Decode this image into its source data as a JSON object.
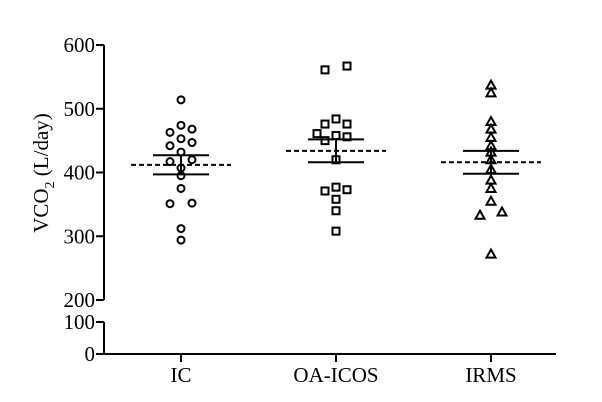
{
  "chart_data": {
    "type": "scatter",
    "ylabel": {
      "main": "VCO",
      "sub": "2",
      "rest": " (L/day)"
    },
    "upper_ticks": [
      "600",
      "500",
      "400",
      "300",
      "200"
    ],
    "lower_ticks": [
      "100",
      "0"
    ],
    "ylim_upper": [
      200,
      600
    ],
    "ylim_lower": [
      0,
      100
    ],
    "axis_break": true,
    "grid": false,
    "categories": [
      "IC",
      "OA-ICOS",
      "IRMS"
    ],
    "series": [
      {
        "category": "IC",
        "marker": "circle",
        "values": [
          514,
          474,
          468,
          463,
          453,
          447,
          442,
          432,
          420,
          417,
          407,
          395,
          375,
          352,
          351,
          312,
          294
        ],
        "mean": 412,
        "sem_upper": 427,
        "sem_lower": 397
      },
      {
        "category": "OA-ICOS",
        "marker": "square",
        "values": [
          567,
          561,
          484,
          476,
          476,
          461,
          458,
          456,
          450,
          420,
          377,
          373,
          371,
          358,
          340,
          308
        ],
        "mean": 434,
        "sem_upper": 452,
        "sem_lower": 416
      },
      {
        "category": "IRMS",
        "marker": "triangle",
        "values": [
          537,
          525,
          480,
          468,
          455,
          442,
          432,
          420,
          405,
          388,
          375,
          355,
          338,
          333,
          272
        ],
        "mean": 416,
        "sem_upper": 434,
        "sem_lower": 398
      }
    ]
  }
}
